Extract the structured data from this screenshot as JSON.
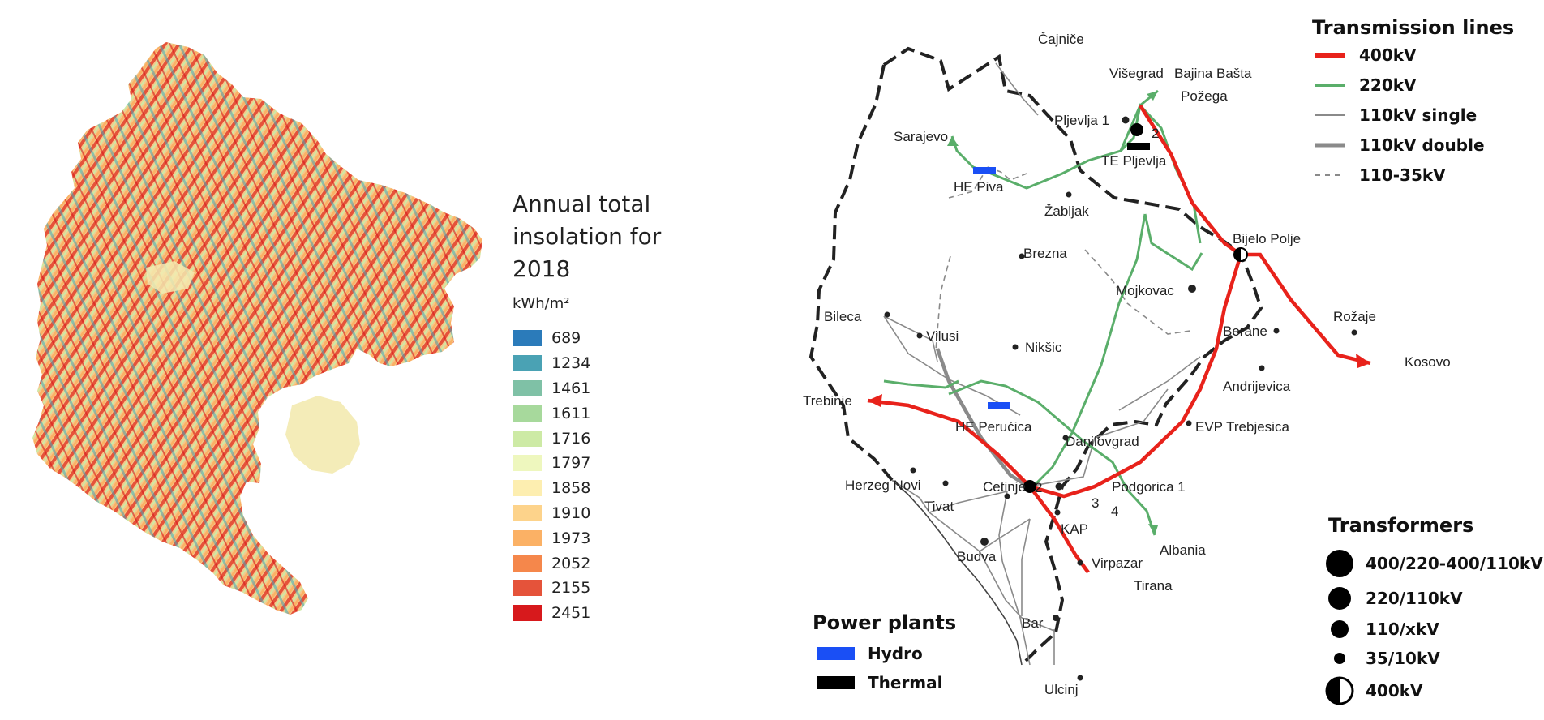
{
  "insolation": {
    "title": "Annual total insolation for 2018",
    "unit": "kWh/m²",
    "classes": [
      {
        "value": "689",
        "color": "#2b7bba"
      },
      {
        "value": "1234",
        "color": "#4aa2b4"
      },
      {
        "value": "1461",
        "color": "#7fc1a6"
      },
      {
        "value": "1611",
        "color": "#a7d99c"
      },
      {
        "value": "1716",
        "color": "#cdeaa5"
      },
      {
        "value": "1797",
        "color": "#eef7be"
      },
      {
        "value": "1858",
        "color": "#fdeeb0"
      },
      {
        "value": "1910",
        "color": "#fdd38b"
      },
      {
        "value": "1973",
        "color": "#fbb165"
      },
      {
        "value": "2052",
        "color": "#f5874b"
      },
      {
        "value": "2155",
        "color": "#e5533a"
      },
      {
        "value": "2451",
        "color": "#d7191c"
      }
    ]
  },
  "network": {
    "places": [
      "Čajniče",
      "Višegrad",
      "Bajina Bašta",
      "Požega",
      "Pljevlja 1",
      "2",
      "TE Pljevlja",
      "Sarajevo",
      "HE Piva",
      "Žabljak",
      "Brezna",
      "Bijelo Polje",
      "Mojkovac",
      "Bileca",
      "Vilusi",
      "Nikšic",
      "Berane",
      "Rožaje",
      "Kosovo",
      "Andrijevica",
      "Trebinje",
      "HE Perućica",
      "Danilovgrad",
      "EVP Trebjesica",
      "Herzeg Novi",
      "Cetinje",
      "2",
      "Podgorica 1",
      "3",
      "4",
      "Tivat",
      "KAP",
      "Albania",
      "Budva",
      "Virpazar",
      "Tirana",
      "Bar",
      "Ulcinj"
    ],
    "legend_lines_title": "Transmission lines",
    "lines": [
      {
        "label": "400kV",
        "color": "#e8221b",
        "style": "thick"
      },
      {
        "label": "220kV",
        "color": "#5aae6a",
        "style": "medium"
      },
      {
        "label": "110kV single",
        "color": "#8a8a8a",
        "style": "thin"
      },
      {
        "label": "110kV double",
        "color": "#8a8a8a",
        "style": "thick-grey"
      },
      {
        "label": "110-35kV",
        "color": "#8a8a8a",
        "style": "dashed"
      }
    ],
    "transformers_title": "Transformers",
    "transformers": [
      "400/220-400/110kV",
      "220/110kV",
      "110/xkV",
      "35/10kV",
      "400kV"
    ],
    "plants_title": "Power plants",
    "plants": [
      {
        "label": "Hydro",
        "color": "#1a4ff5"
      },
      {
        "label": "Thermal",
        "color": "#000000"
      }
    ]
  }
}
